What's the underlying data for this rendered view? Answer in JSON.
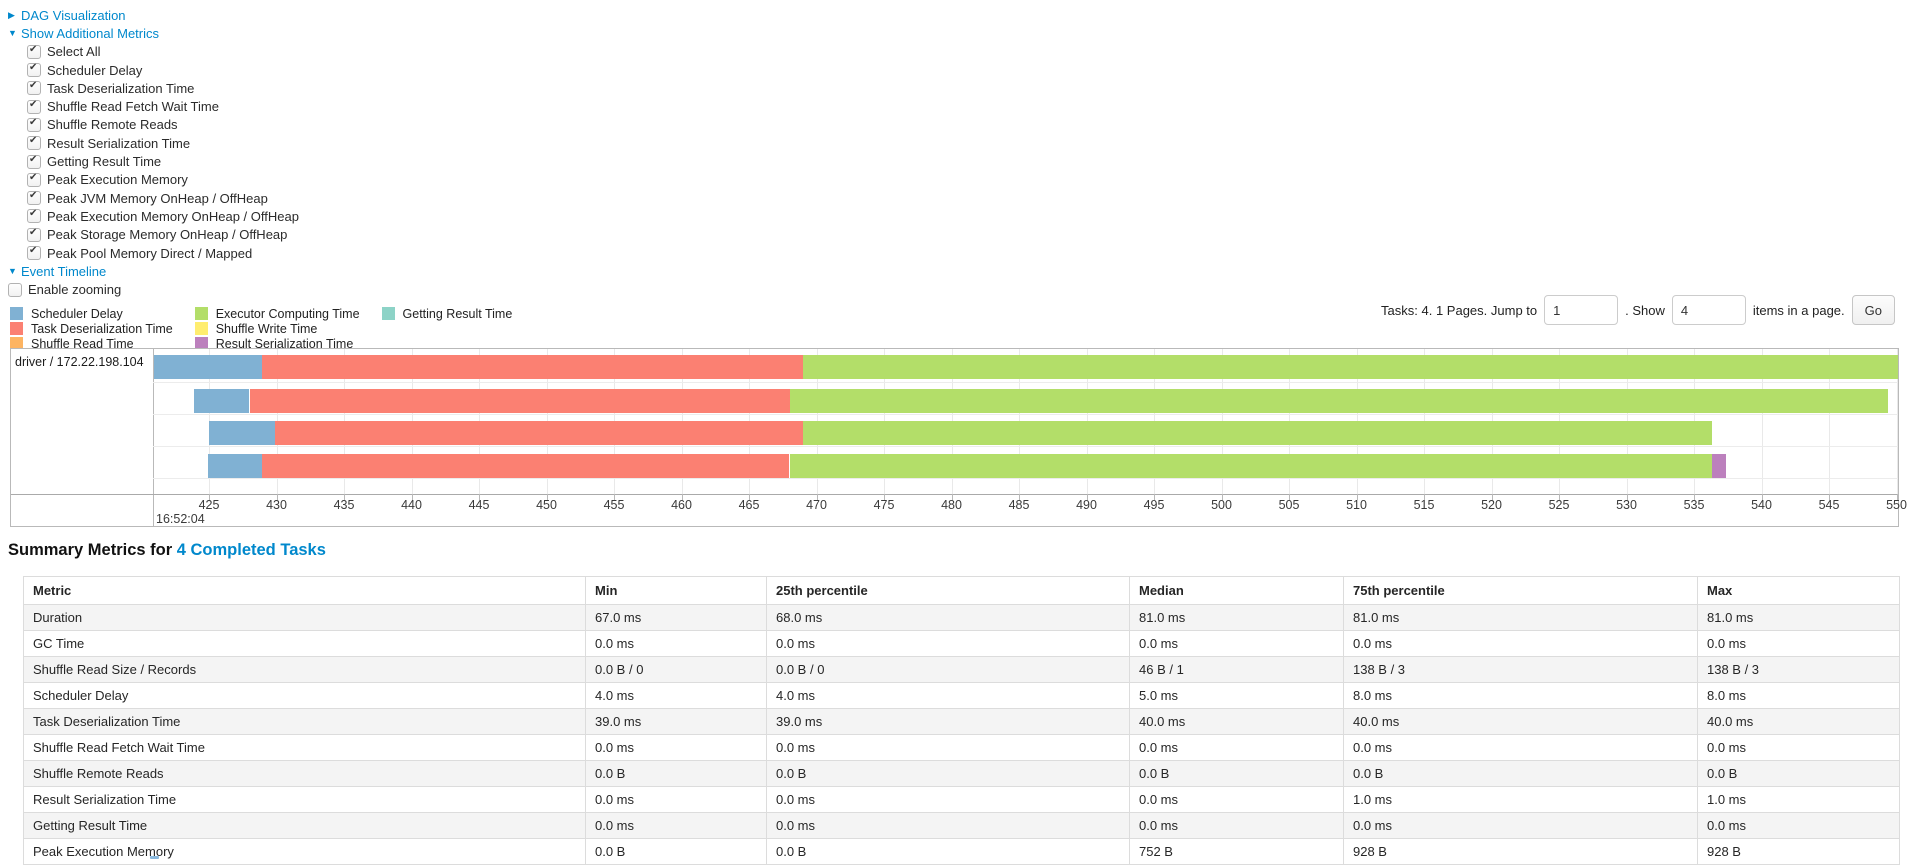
{
  "controls": {
    "dag_arrow": "▶",
    "dag_label": "DAG Visualization",
    "metrics_arrow": "▼",
    "metrics_label": "Show Additional Metrics",
    "metric_checkboxes": [
      "Select All",
      "Scheduler Delay",
      "Task Deserialization Time",
      "Shuffle Read Fetch Wait Time",
      "Shuffle Remote Reads",
      "Result Serialization Time",
      "Getting Result Time",
      "Peak Execution Memory",
      "Peak JVM Memory OnHeap / OffHeap",
      "Peak Execution Memory OnHeap / OffHeap",
      "Peak Storage Memory OnHeap / OffHeap",
      "Peak Pool Memory Direct / Mapped"
    ],
    "timeline_arrow": "▼",
    "timeline_label": "Event Timeline",
    "enable_zooming_label": "Enable zooming",
    "enable_zooming_checked": false
  },
  "legend": {
    "items": [
      {
        "key": "scheduler_delay",
        "label": "Scheduler Delay",
        "color": "#80B1D3"
      },
      {
        "key": "task_deserialization",
        "label": "Task Deserialization Time",
        "color": "#FB8072"
      },
      {
        "key": "shuffle_read",
        "label": "Shuffle Read Time",
        "color": "#FDB462"
      },
      {
        "key": "executor_computing",
        "label": "Executor Computing Time",
        "color": "#B3DE69"
      },
      {
        "key": "shuffle_write",
        "label": "Shuffle Write Time",
        "color": "#FFED6F"
      },
      {
        "key": "result_serialization",
        "label": "Result Serialization Time",
        "color": "#BC80BD"
      },
      {
        "key": "getting_result",
        "label": "Getting Result Time",
        "color": "#8DD3C7"
      }
    ]
  },
  "pagination": {
    "tasks_text": "Tasks: 4. 1 Pages. Jump to",
    "jump_value": "1",
    "show_text": ". Show",
    "show_value": "4",
    "items_text": "items in a page.",
    "go_label": "Go"
  },
  "timeline": {
    "row_label": "driver / 172.22.198.104",
    "axis_start_time": "16:52:04",
    "axis_unit_ms": 5,
    "axis_ticks": [
      425,
      430,
      435,
      440,
      445,
      450,
      455,
      460,
      465,
      470,
      475,
      480,
      485,
      490,
      495,
      500,
      505,
      510,
      515,
      520,
      525,
      530,
      535,
      540,
      545,
      550
    ],
    "tasks": [
      {
        "segments": [
          {
            "type": "scheduler_delay",
            "start": 420.9,
            "end": 428.9
          },
          {
            "type": "task_deserialization",
            "start": 428.9,
            "end": 469.0
          },
          {
            "type": "executor_computing",
            "start": 469.0,
            "end": 550.5
          }
        ]
      },
      {
        "segments": [
          {
            "type": "scheduler_delay",
            "start": 423.9,
            "end": 428.0
          },
          {
            "type": "task_deserialization",
            "start": 428.0,
            "end": 468.0
          },
          {
            "type": "executor_computing",
            "start": 468.0,
            "end": 549.4
          }
        ]
      },
      {
        "segments": [
          {
            "type": "scheduler_delay",
            "start": 425.0,
            "end": 429.9
          },
          {
            "type": "task_deserialization",
            "start": 429.9,
            "end": 469.0
          },
          {
            "type": "executor_computing",
            "start": 469.0,
            "end": 536.3
          }
        ]
      },
      {
        "segments": [
          {
            "type": "scheduler_delay",
            "start": 424.9,
            "end": 428.9
          },
          {
            "type": "task_deserialization",
            "start": 428.9,
            "end": 468.0
          },
          {
            "type": "executor_computing",
            "start": 468.0,
            "end": 536.3
          },
          {
            "type": "result_serialization",
            "start": 536.3,
            "end": 537.4
          }
        ]
      }
    ]
  },
  "summary": {
    "title_prefix": "Summary Metrics for",
    "completed_tasks_link": "4 Completed Tasks",
    "table": {
      "headers": [
        "Metric",
        "Min",
        "25th percentile",
        "Median",
        "75th percentile",
        "Max"
      ],
      "rows": [
        {
          "metric": "Duration",
          "values": [
            "67.0 ms",
            "68.0 ms",
            "81.0 ms",
            "81.0 ms",
            "81.0 ms"
          ]
        },
        {
          "metric": "GC Time",
          "values": [
            "0.0 ms",
            "0.0 ms",
            "0.0 ms",
            "0.0 ms",
            "0.0 ms"
          ]
        },
        {
          "metric": "Shuffle Read Size / Records",
          "values": [
            "0.0 B / 0",
            "0.0 B / 0",
            "46 B / 1",
            "138 B / 3",
            "138 B / 3"
          ]
        },
        {
          "metric": "Scheduler Delay",
          "values": [
            "4.0 ms",
            "4.0 ms",
            "5.0 ms",
            "8.0 ms",
            "8.0 ms"
          ]
        },
        {
          "metric": "Task Deserialization Time",
          "values": [
            "39.0 ms",
            "39.0 ms",
            "40.0 ms",
            "40.0 ms",
            "40.0 ms"
          ]
        },
        {
          "metric": "Shuffle Read Fetch Wait Time",
          "values": [
            "0.0 ms",
            "0.0 ms",
            "0.0 ms",
            "0.0 ms",
            "0.0 ms"
          ]
        },
        {
          "metric": "Shuffle Remote Reads",
          "values": [
            "0.0 B",
            "0.0 B",
            "0.0 B",
            "0.0 B",
            "0.0 B"
          ]
        },
        {
          "metric": "Result Serialization Time",
          "values": [
            "0.0 ms",
            "0.0 ms",
            "0.0 ms",
            "1.0 ms",
            "1.0 ms"
          ]
        },
        {
          "metric": "Getting Result Time",
          "values": [
            "0.0 ms",
            "0.0 ms",
            "0.0 ms",
            "0.0 ms",
            "0.0 ms"
          ]
        },
        {
          "metric": "Peak Execution Memory",
          "values": [
            "0.0 B",
            "0.0 B",
            "752 B",
            "928 B",
            "928 B"
          ]
        }
      ]
    }
  },
  "colors": {
    "link": "#0088cc",
    "chart_border": "#b9b9b9",
    "table_stripe": "#f4f4f4"
  }
}
